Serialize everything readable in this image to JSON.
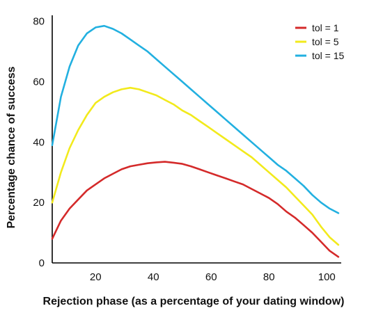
{
  "chart_data": {
    "type": "line",
    "xlabel": "Rejection phase (as a percentage of your dating window)",
    "ylabel": "Percentage chance of success",
    "xlim": [
      5,
      105
    ],
    "ylim": [
      0,
      82
    ],
    "x_ticks": [
      20,
      40,
      60,
      80,
      100
    ],
    "y_ticks": [
      0,
      20,
      40,
      60,
      80
    ],
    "grid": false,
    "legend_position": "top-right",
    "x": [
      5,
      8,
      11,
      14,
      17,
      20,
      23,
      26,
      29,
      32,
      35,
      38,
      41,
      44,
      47,
      50,
      53,
      56,
      59,
      62,
      65,
      68,
      71,
      74,
      77,
      80,
      83,
      86,
      89,
      92,
      95,
      98,
      101,
      104
    ],
    "series": [
      {
        "name": "tol = 1",
        "color": "#d42a2a",
        "values": [
          8,
          14,
          18,
          21,
          24,
          26,
          28,
          29.5,
          31,
          32,
          32.5,
          33,
          33.3,
          33.5,
          33.2,
          32.8,
          32,
          31,
          30,
          29,
          28,
          27,
          26,
          24.5,
          23,
          21.5,
          19.5,
          17,
          15,
          12.5,
          10,
          7,
          4,
          2
        ]
      },
      {
        "name": "tol = 5",
        "color": "#f2ea1c",
        "values": [
          20,
          30,
          38,
          44,
          49,
          53,
          55,
          56.5,
          57.5,
          58,
          57.5,
          56.5,
          55.5,
          54,
          52.5,
          50.5,
          49,
          47,
          45,
          43,
          41,
          39,
          37,
          35,
          32.5,
          30,
          27.5,
          25,
          22,
          19,
          16,
          12,
          8.5,
          6
        ]
      },
      {
        "name": "tol = 15",
        "color": "#22b0e0",
        "values": [
          39,
          55,
          65,
          72,
          76,
          78,
          78.5,
          77.5,
          76,
          74,
          72,
          70,
          67.5,
          65,
          62.5,
          60,
          57.5,
          55,
          52.5,
          50,
          47.5,
          45,
          42.5,
          40,
          37.5,
          35,
          32.5,
          30.5,
          28,
          25.5,
          22.5,
          20,
          18,
          16.5
        ]
      }
    ]
  }
}
